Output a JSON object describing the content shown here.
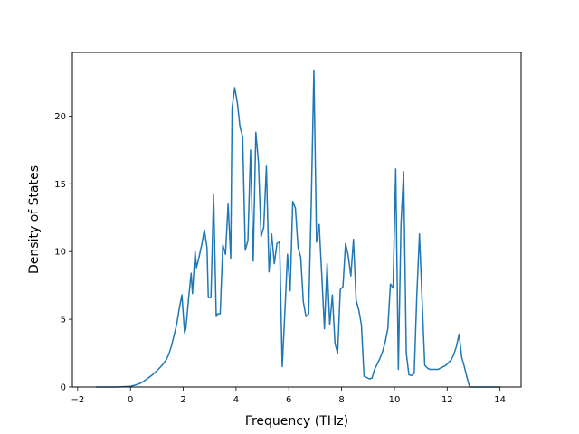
{
  "chart_data": {
    "type": "line",
    "title": "",
    "xlabel": "Frequency (THz)",
    "ylabel": "Density of States",
    "xlim": [
      -2.2,
      14.8
    ],
    "ylim": [
      0,
      24.7
    ],
    "xticks": [
      -2,
      0,
      2,
      4,
      6,
      8,
      10,
      12,
      14
    ],
    "yticks": [
      0,
      5,
      10,
      15,
      20
    ],
    "grid": false,
    "line_color": "#1f77b4",
    "series": [
      {
        "x": [
          -1.3,
          -1.0,
          -0.5,
          0.0,
          0.2,
          0.4,
          0.6,
          0.8,
          1.0,
          1.1,
          1.2,
          1.35,
          1.45,
          1.55,
          1.65,
          1.75,
          1.85,
          1.95,
          2.05,
          2.1,
          2.2,
          2.3,
          2.35,
          2.45,
          2.5,
          2.6,
          2.7,
          2.8,
          2.9,
          2.95,
          3.05,
          3.15,
          3.25,
          3.3,
          3.4,
          3.5,
          3.6,
          3.7,
          3.8,
          3.85,
          3.95,
          4.05,
          4.15,
          4.25,
          4.35,
          4.45,
          4.55,
          4.65,
          4.75,
          4.85,
          4.95,
          5.05,
          5.15,
          5.25,
          5.35,
          5.45,
          5.55,
          5.65,
          5.75,
          5.85,
          5.95,
          6.05,
          6.15,
          6.25,
          6.35,
          6.45,
          6.55,
          6.65,
          6.75,
          6.85,
          6.95,
          7.05,
          7.15,
          7.25,
          7.35,
          7.45,
          7.55,
          7.65,
          7.75,
          7.85,
          7.95,
          8.05,
          8.15,
          8.25,
          8.35,
          8.45,
          8.55,
          8.65,
          8.75,
          8.85,
          8.95,
          9.05,
          9.15,
          9.25,
          9.35,
          9.45,
          9.55,
          9.65,
          9.75,
          9.85,
          9.95,
          10.05,
          10.15,
          10.25,
          10.35,
          10.45,
          10.55,
          10.65,
          10.75,
          10.85,
          10.95,
          11.05,
          11.15,
          11.25,
          11.35,
          11.45,
          11.55,
          11.65,
          11.75,
          11.85,
          11.95,
          12.05,
          12.15,
          12.25,
          12.35,
          12.45,
          12.55,
          12.65,
          12.75,
          12.85,
          13.0,
          13.5,
          14.0
        ],
        "y": [
          0.0,
          0.0,
          0.0,
          0.05,
          0.15,
          0.3,
          0.55,
          0.85,
          1.2,
          1.4,
          1.6,
          2.0,
          2.4,
          3.0,
          3.8,
          4.6,
          5.8,
          6.8,
          4.0,
          4.3,
          6.5,
          8.4,
          6.9,
          10.0,
          8.8,
          9.6,
          10.5,
          11.6,
          10.3,
          6.6,
          6.6,
          14.2,
          5.2,
          5.4,
          5.4,
          10.5,
          9.8,
          13.5,
          9.5,
          20.6,
          22.1,
          21.0,
          19.2,
          18.5,
          10.1,
          10.8,
          17.5,
          9.3,
          18.8,
          16.6,
          11.1,
          11.8,
          16.3,
          8.5,
          11.3,
          9.1,
          10.6,
          10.7,
          1.5,
          5.5,
          9.8,
          7.1,
          13.7,
          13.2,
          10.3,
          9.6,
          6.3,
          5.2,
          5.4,
          13.5,
          23.4,
          10.7,
          12.0,
          8.2,
          4.3,
          9.1,
          4.6,
          6.8,
          3.2,
          2.5,
          7.2,
          7.4,
          10.6,
          9.7,
          8.2,
          10.9,
          6.4,
          5.7,
          4.6,
          0.8,
          0.7,
          0.6,
          0.65,
          1.3,
          1.7,
          2.1,
          2.6,
          3.3,
          4.3,
          7.6,
          7.3,
          16.1,
          1.3,
          12.0,
          15.9,
          2.5,
          0.9,
          0.85,
          1.0,
          6.8,
          11.3,
          6.4,
          1.6,
          1.4,
          1.3,
          1.3,
          1.3,
          1.3,
          1.4,
          1.5,
          1.6,
          1.8,
          2.0,
          2.4,
          3.0,
          3.9,
          2.2,
          1.5,
          0.7,
          0.0,
          0.0,
          0.0,
          0.0
        ]
      }
    ]
  }
}
